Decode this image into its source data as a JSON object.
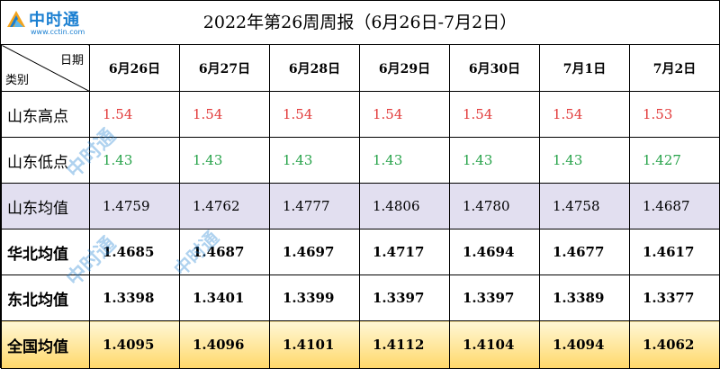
{
  "logo": {
    "name": "中时通",
    "url": "www.cctin.com"
  },
  "title": "2022年第26周周报（6月26日-7月2日）",
  "header": {
    "date_label": "日期",
    "category_label": "类别"
  },
  "dates": [
    "6月26日",
    "6月27日",
    "6月28日",
    "6月29日",
    "6月30日",
    "7月1日",
    "7月2日"
  ],
  "rows": [
    {
      "category": "山东高点",
      "values": [
        "1.54",
        "1.54",
        "1.54",
        "1.54",
        "1.54",
        "1.54",
        "1.53"
      ]
    },
    {
      "category": "山东低点",
      "values": [
        "1.43",
        "1.43",
        "1.43",
        "1.43",
        "1.43",
        "1.43",
        "1.427"
      ]
    },
    {
      "category": "山东均值",
      "values": [
        "1.4759",
        "1.4762",
        "1.4777",
        "1.4806",
        "1.4780",
        "1.4758",
        "1.4687"
      ]
    },
    {
      "category": "华北均值",
      "values": [
        "1.4685",
        "1.4687",
        "1.4697",
        "1.4717",
        "1.4694",
        "1.4677",
        "1.4617"
      ]
    },
    {
      "category": "东北均值",
      "values": [
        "1.3398",
        "1.3401",
        "1.3399",
        "1.3397",
        "1.3397",
        "1.3389",
        "1.3377"
      ]
    },
    {
      "category": "全国均值",
      "values": [
        "1.4095",
        "1.4096",
        "1.4101",
        "1.4112",
        "1.4104",
        "1.4094",
        "1.4062"
      ]
    }
  ],
  "colors": {
    "high": "#e23b3b",
    "low": "#27a34a",
    "avg_row": "#e2dff0",
    "national_row": "#ffd86a",
    "logo": "#1a7fd1"
  }
}
